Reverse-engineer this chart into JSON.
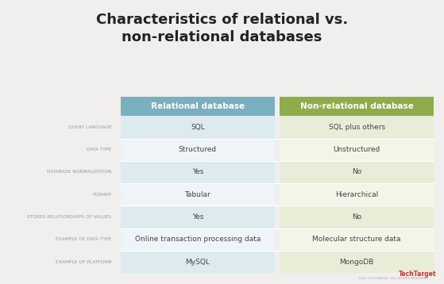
{
  "title_line1": "Characteristics of relational vs.",
  "title_line2": "non-relational databases",
  "col1_header": "Relational database",
  "col2_header": "Non-relational database",
  "col1_header_color": "#7aafc0",
  "col2_header_color": "#8fac4a",
  "col1_bg_shaded": "#ddeaf0",
  "col2_bg_shaded": "#e8edd8",
  "col1_bg_plain": "#eef4f7",
  "col2_bg_plain": "#f2f5e8",
  "row_label_color": "#999999",
  "row_value_color": "#444444",
  "background_color": "#f0efed",
  "rows": [
    {
      "label": "QUERY LANGUAGE",
      "col1": "SQL",
      "col2": "SQL plus others",
      "shaded": true
    },
    {
      "label": "DATA TYPE",
      "col1": "Structured",
      "col2": "Unstructured",
      "shaded": false
    },
    {
      "label": "DATABASE NORMALIZATION",
      "col1": "Yes",
      "col2": "No",
      "shaded": true
    },
    {
      "label": "FORMAT",
      "col1": "Tabular",
      "col2": "Hierarchical",
      "shaded": false
    },
    {
      "label": "STORES RELATIONSHIPS OF VALUES",
      "col1": "Yes",
      "col2": "No",
      "shaded": true
    },
    {
      "label": "EXAMPLE OF DATA TYPE",
      "col1": "Online transaction processing data",
      "col2": "Molecular structure data",
      "shaded": false
    },
    {
      "label": "EXAMPLE OF PLATFORM",
      "col1": "MySQL",
      "col2": "MongoDB",
      "shaded": true
    }
  ],
  "footer_text": "2022 TECHTARGET. ALL RIGHTS RESERVED.",
  "watermark": "TechTarget"
}
